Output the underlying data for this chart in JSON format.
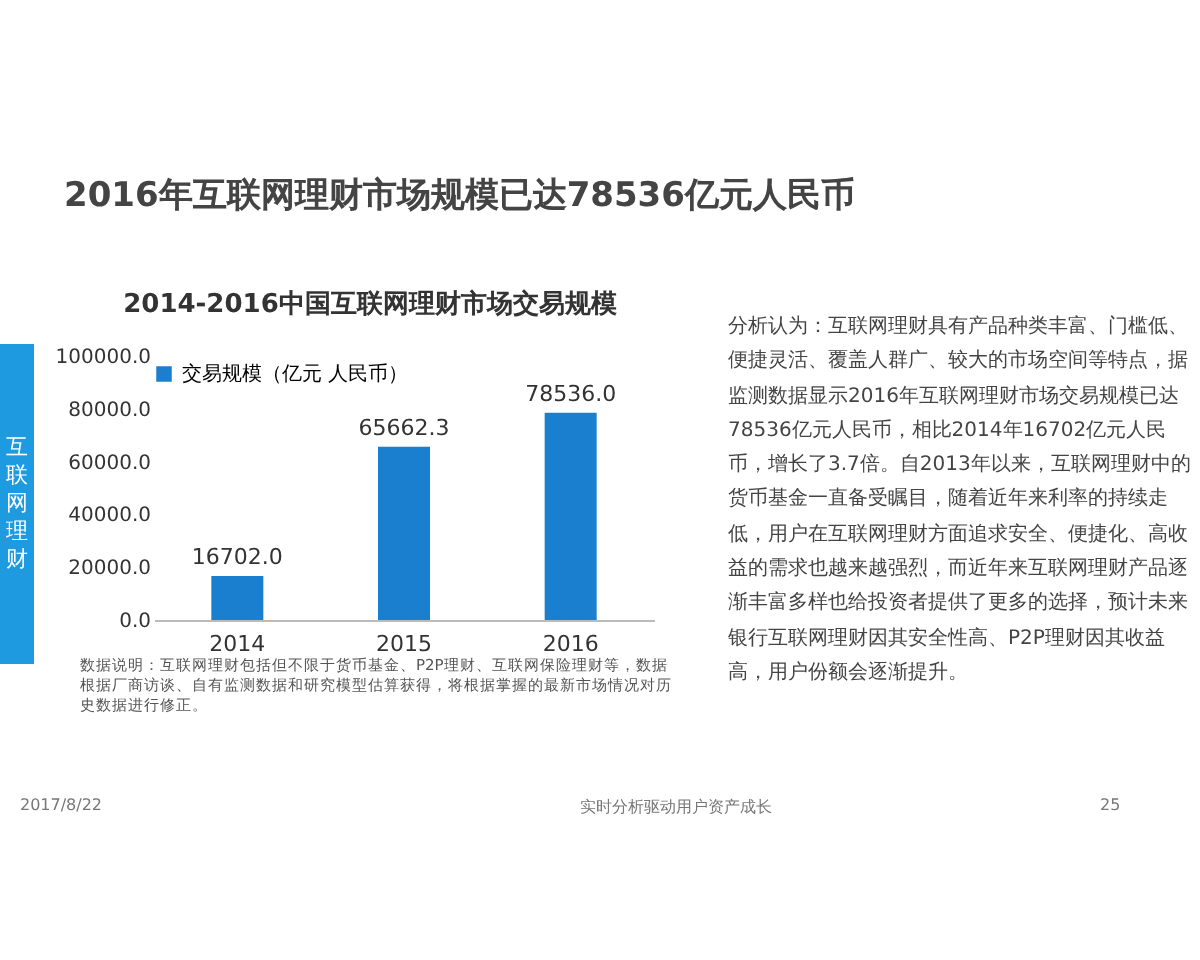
{
  "chart_data": {
    "type": "bar",
    "title": "2016年互联网理财市场规模已达78536亿元人民币",
    "subtitle": "2014-2016中国互联网理财市场交易规模",
    "categories": [
      "2014",
      "2015",
      "2016"
    ],
    "series": [
      {
        "name": "交易规模（亿元 人民币）",
        "color": "#1b7fd0",
        "values": [
          16702.0,
          65662.3,
          78536.0
        ],
        "value_labels": [
          "16702.0",
          "65662.3",
          "78536.0"
        ]
      }
    ],
    "ylim": [
      0,
      100000
    ],
    "yticks": [
      {
        "value": 0,
        "label": "0.0"
      },
      {
        "value": 20000,
        "label": "20000.0"
      },
      {
        "value": 40000,
        "label": "40000.0"
      },
      {
        "value": 60000,
        "label": "60000.0"
      },
      {
        "value": 80000,
        "label": "80000.0"
      },
      {
        "value": 100000,
        "label": "100000.0"
      }
    ],
    "legend": "top",
    "annotations": [
      "互联网理财",
      "数据说明：互联网理财包括但不限于货币基金、P2P理财、互联网保险理财等，数据根据厂商访谈、自有监测数据和研究模型估算获得，将根据掌握的最新市场情况对历史数据进行修正。",
      "分析认为：互联网理财具有产品种类丰富、门槛低、便捷灵活、覆盖人群广、较大的市场空间等特点，据监测数据显示2016年互联网理财市场交易规模已达 78536亿元人民币，相比2014年16702亿元人民币，增长了3.7倍。自2013年以来，互联网理财中的货币基金一直备受瞩目，随着近年来利率的持续走低，用户在互联网理财方面追求安全、便捷化、高收益的需求也越来越强烈，而近年来互联网理财产品逐渐丰富多样也给投资者提供了更多的选择，预计未来银行互联网理财因其安全性高、P2P理财因其收益高，用户份额会逐渐提升。",
      "2017/8/22",
      "实时分析驱动用户资产成长",
      "25"
    ]
  }
}
